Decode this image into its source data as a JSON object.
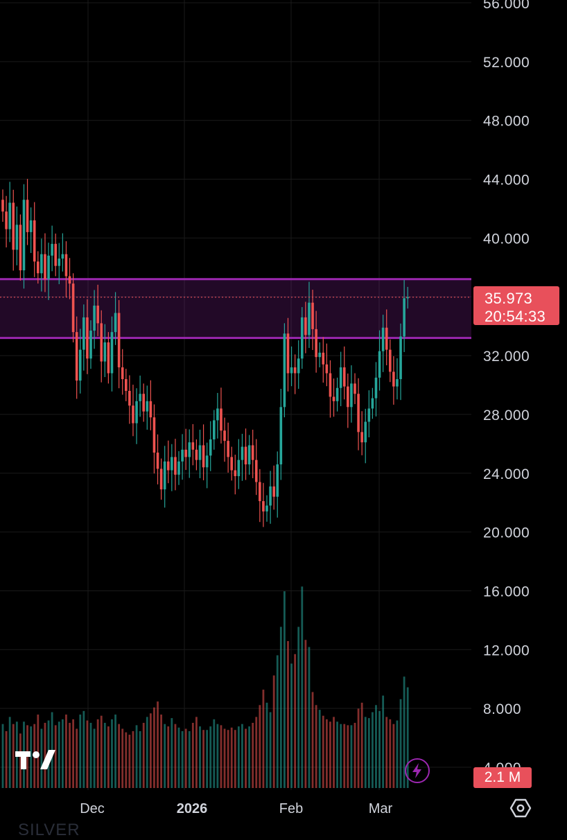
{
  "chart_data": {
    "type": "candlestick",
    "symbol": "SILVER",
    "y_axis": {
      "range": [
        2.9,
        56.8
      ],
      "tick_labels": [
        "56.000",
        "52.000",
        "48.000",
        "44.000",
        "40.000",
        "36.000",
        "32.000",
        "28.000",
        "24.000",
        "20.000",
        "16.000",
        "12.000",
        "8.000",
        "4.000"
      ],
      "ticks": [
        56,
        52,
        48,
        44,
        40,
        36,
        32,
        28,
        24,
        20,
        16,
        12,
        8,
        4
      ]
    },
    "x_axis": {
      "tick_labels": [
        "Dec",
        "2026",
        "Feb",
        "Mar"
      ]
    },
    "current_price": "35.973",
    "current_price_value": 35.973,
    "countdown": "20:54:33",
    "volume_label": "2.1 M",
    "zone": {
      "low": 33.2,
      "high": 37.2,
      "color": "#9c27b0"
    },
    "colors": {
      "up": "#26a69a",
      "down": "#ef5350",
      "background": "#000000",
      "grid": "#1a1a1a",
      "badge": "#e8505b"
    },
    "closes": [
      41.8,
      40.6,
      42.4,
      39.2,
      40.9,
      37.8,
      42.6,
      40.4,
      41.2,
      38.4,
      37.6,
      38.9,
      37.2,
      38.8,
      39.6,
      38.1,
      38.6,
      38.9,
      37.4,
      36.9,
      33.6,
      30.3,
      32.4,
      34.6,
      31.8,
      33.7,
      35.4,
      34.2,
      31.6,
      32.9,
      30.8,
      33.6,
      34.9,
      31.2,
      30.4,
      29.6,
      28.6,
      27.4,
      28.9,
      29.4,
      28.2,
      28.9,
      27.8,
      25.4,
      24.3,
      22.9,
      24.8,
      24.2,
      25.1,
      23.9,
      24.8,
      25.6,
      25.1,
      26.1,
      25.6,
      24.9,
      25.9,
      24.4,
      25.2,
      26.3,
      27.6,
      28.4,
      26.9,
      26.2,
      25.1,
      24.2,
      23.8,
      24.9,
      25.8,
      24.6,
      25.9,
      24.9,
      23.4,
      22.1,
      21.4,
      21.8,
      23.1,
      22.4,
      24.6,
      28.5,
      33.5,
      30.8,
      31.2,
      30.8,
      31.8,
      34.6,
      33.4,
      35.6,
      33.8,
      31.9,
      32.2,
      31.4,
      30.8,
      29.2,
      28.9,
      29.8,
      31.2,
      29.9,
      28.5,
      30.1,
      29.4,
      26.8,
      26.1,
      27.5,
      28.4,
      29.1,
      30.5,
      32.3,
      33.9,
      32.4,
      30.9,
      29.9,
      30.4,
      33.3,
      35.9,
      35.973
    ],
    "volumes": [
      5.4,
      4.8,
      6.0,
      5.4,
      5.6,
      4.6,
      5.6,
      5.3,
      5.2,
      5.4,
      6.2,
      5.0,
      5.5,
      5.7,
      6.4,
      5.3,
      5.6,
      5.8,
      6.2,
      5.5,
      5.8,
      5.0,
      6.2,
      6.5,
      5.7,
      5.5,
      5.0,
      5.8,
      6.1,
      5.5,
      5.2,
      5.8,
      6.2,
      5.4,
      5.0,
      4.7,
      4.5,
      4.8,
      5.3,
      4.8,
      5.5,
      6.0,
      6.3,
      6.8,
      7.3,
      6.2,
      5.4,
      5.2,
      5.9,
      5.4,
      5.1,
      4.8,
      5.0,
      4.8,
      5.5,
      6.0,
      5.2,
      4.9,
      4.9,
      5.2,
      5.8,
      5.4,
      5.3,
      5.0,
      4.9,
      5.1,
      4.9,
      5.2,
      5.4,
      5.0,
      5.2,
      5.5,
      6.0,
      7.0,
      8.3,
      7.2,
      6.4,
      9.5,
      11.2,
      13.6,
      16.6,
      12.4,
      10.5,
      11.3,
      13.6,
      17.0,
      12.5,
      11.9,
      8.1,
      7.0,
      6.6,
      6.1,
      5.8,
      5.6,
      6.0,
      5.6,
      5.4,
      5.4,
      5.3,
      5.3,
      5.5,
      6.7,
      7.2,
      6.0,
      5.9,
      6.4,
      7.0,
      6.5,
      7.8,
      6.0,
      5.8,
      5.4,
      5.7,
      7.5,
      9.4,
      8.5
    ]
  },
  "logo": "tradingview-logo",
  "icons": {
    "bolt": "lightning-bolt-icon",
    "settings": "settings-hexagon-icon"
  }
}
